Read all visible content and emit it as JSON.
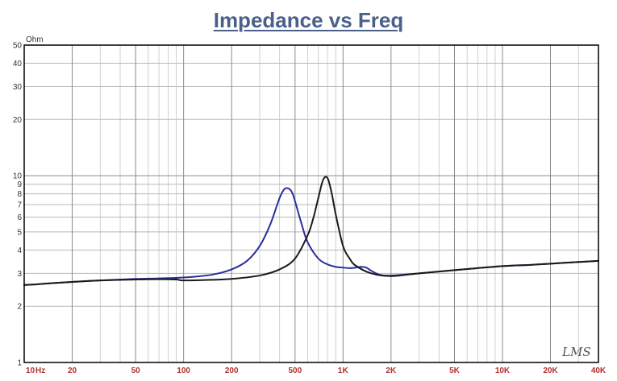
{
  "chart_data": {
    "type": "line",
    "title": "Impedance vs Freq",
    "yunit": "Ohm",
    "xscale": "log",
    "yscale": "log",
    "xlim": [
      10,
      40000
    ],
    "ylim": [
      1,
      50
    ],
    "grid": true,
    "y_ticks": [
      {
        "v": 1,
        "label": "1"
      },
      {
        "v": 2,
        "label": "2"
      },
      {
        "v": 3,
        "label": "3"
      },
      {
        "v": 4,
        "label": "4"
      },
      {
        "v": 5,
        "label": "5"
      },
      {
        "v": 6,
        "label": "6"
      },
      {
        "v": 7,
        "label": "7"
      },
      {
        "v": 8,
        "label": "8"
      },
      {
        "v": 9,
        "label": "9"
      },
      {
        "v": 10,
        "label": "10"
      },
      {
        "v": 20,
        "label": "20"
      },
      {
        "v": 30,
        "label": "30"
      },
      {
        "v": 40,
        "label": "40"
      },
      {
        "v": 50,
        "label": "50"
      }
    ],
    "x_ticks": [
      {
        "v": 10,
        "label": "10"
      },
      {
        "v": 20,
        "label": "20"
      },
      {
        "v": 50,
        "label": "50"
      },
      {
        "v": 100,
        "label": "100"
      },
      {
        "v": 200,
        "label": "200"
      },
      {
        "v": 500,
        "label": "500"
      },
      {
        "v": 1000,
        "label": "1K"
      },
      {
        "v": 2000,
        "label": "2K"
      },
      {
        "v": 5000,
        "label": "5K"
      },
      {
        "v": 10000,
        "label": "10K"
      },
      {
        "v": 20000,
        "label": "20K"
      },
      {
        "v": 40000,
        "label": "40K"
      }
    ],
    "x_unit_label": "Hz",
    "watermark": "LMS",
    "series": [
      {
        "color": "#2a2f9a",
        "x": [
          10,
          12,
          15,
          20,
          30,
          50,
          70,
          100,
          150,
          200,
          250,
          300,
          350,
          400,
          430,
          460,
          480,
          500,
          550,
          600,
          700,
          800,
          900,
          1000,
          1100,
          1200,
          1300,
          1400,
          1500,
          1700,
          2000,
          3000,
          5000,
          7000,
          10000,
          15000,
          20000,
          30000,
          40000
        ],
        "y": [
          2.6,
          2.62,
          2.66,
          2.7,
          2.75,
          2.8,
          2.82,
          2.85,
          2.95,
          3.15,
          3.5,
          4.2,
          5.5,
          7.6,
          8.5,
          8.5,
          8.1,
          7.3,
          5.5,
          4.4,
          3.6,
          3.35,
          3.25,
          3.22,
          3.2,
          3.22,
          3.25,
          3.22,
          3.1,
          2.95,
          2.92,
          3.0,
          3.12,
          3.2,
          3.28,
          3.33,
          3.38,
          3.45,
          3.5
        ]
      },
      {
        "color": "#1a1a1a",
        "x": [
          10,
          12,
          15,
          20,
          30,
          50,
          70,
          90,
          100,
          150,
          200,
          300,
          400,
          500,
          600,
          650,
          700,
          750,
          800,
          850,
          900,
          1000,
          1100,
          1200,
          1500,
          2000,
          3000,
          5000,
          7000,
          10000,
          15000,
          20000,
          30000,
          40000
        ],
        "y": [
          2.6,
          2.62,
          2.66,
          2.7,
          2.75,
          2.78,
          2.79,
          2.78,
          2.75,
          2.77,
          2.8,
          2.92,
          3.15,
          3.6,
          4.8,
          5.9,
          7.6,
          9.5,
          9.7,
          8.0,
          6.2,
          4.2,
          3.6,
          3.3,
          3.0,
          2.9,
          3.0,
          3.12,
          3.2,
          3.28,
          3.33,
          3.38,
          3.45,
          3.5
        ]
      }
    ]
  }
}
